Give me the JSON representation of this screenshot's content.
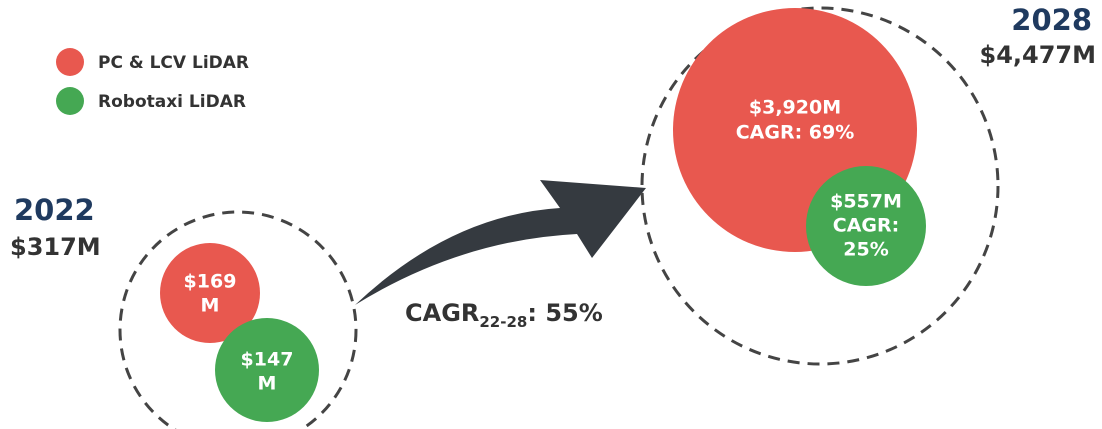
{
  "legend": [
    {
      "label": "PC & LCV LiDAR"
    },
    {
      "label": "Robotaxi LiDAR"
    }
  ],
  "start": {
    "year": "2022",
    "total": "$317M",
    "pc": {
      "lines": [
        "$169",
        "M"
      ]
    },
    "robotaxi": {
      "lines": [
        "$147",
        "M"
      ]
    }
  },
  "growth": {
    "label": "CAGR",
    "subscript": "22-28",
    "suffix": ": 55%"
  },
  "end": {
    "year": "2028",
    "total": "$4,477M",
    "pc": {
      "lines": [
        "$3,920M",
        "CAGR: 69%"
      ]
    },
    "robotaxi": {
      "lines": [
        "$557M",
        "CAGR:",
        "25%"
      ]
    }
  }
}
